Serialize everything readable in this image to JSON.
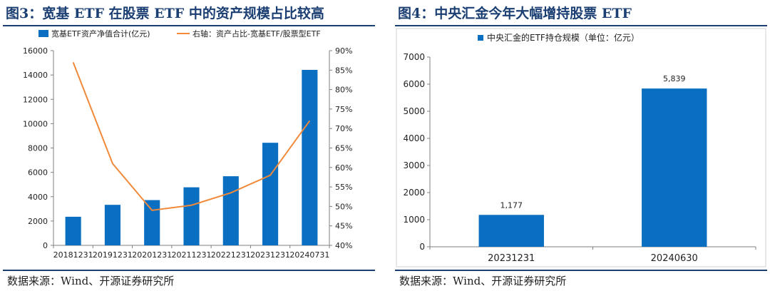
{
  "colors": {
    "bar": "#0b6fc1",
    "line": "#f08a3a",
    "title": "#1b3f73",
    "axis": "#7f7f7f"
  },
  "left": {
    "title": "图3：宽基 ETF 在股票 ETF 中的资产规模占比较高",
    "source": "数据来源：Wind、开源证券研究所"
  },
  "right": {
    "title": "图4：中央汇金今年大幅增持股票 ETF",
    "source": "数据来源：Wind、开源证券研究所"
  },
  "chart_data": [
    {
      "type": "bar+line",
      "categories": [
        "20181231",
        "20191231",
        "20201231",
        "20211231",
        "20221231",
        "20231231",
        "20240731"
      ],
      "series": [
        {
          "name": "宽基ETF资产净值合计(亿元)",
          "type": "bar",
          "axis": "left",
          "values": [
            2350,
            3330,
            3720,
            4770,
            5680,
            8430,
            14420
          ]
        },
        {
          "name": "右轴：资产占比-宽基ETF/股票型ETF",
          "type": "line",
          "axis": "right",
          "values": [
            87,
            61,
            49,
            50.3,
            53.5,
            58,
            72
          ]
        }
      ],
      "y_left": {
        "min": 0,
        "max": 16000,
        "ticks": [
          "0",
          "2000",
          "4000",
          "6000",
          "8000",
          "10000",
          "12000",
          "14000",
          "16000"
        ]
      },
      "y_right": {
        "min": 40,
        "max": 90,
        "ticks": [
          "40%",
          "45%",
          "50%",
          "55%",
          "60%",
          "65%",
          "70%",
          "75%",
          "80%",
          "85%",
          "90%"
        ]
      },
      "legend_position": "top"
    },
    {
      "type": "bar",
      "categories": [
        "20231231",
        "20240630"
      ],
      "series": [
        {
          "name": "中央汇金的ETF持仓规模（单位：亿元）",
          "values": [
            1177,
            5839
          ]
        }
      ],
      "data_labels": [
        "1,177",
        "5,839"
      ],
      "ylim": [
        0,
        7000
      ],
      "ticks": [
        "0",
        "1000",
        "2000",
        "3000",
        "4000",
        "5000",
        "6000",
        "7000"
      ],
      "grid": false,
      "legend_position": "top"
    }
  ]
}
